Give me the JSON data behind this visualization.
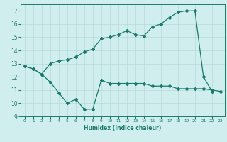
{
  "xlabel": "Humidex (Indice chaleur)",
  "line1": {
    "x": [
      0,
      1,
      2,
      3,
      4,
      5,
      6,
      7,
      8,
      9,
      10,
      11,
      12,
      13,
      14,
      15,
      16,
      17,
      18,
      19,
      20,
      21,
      22,
      23
    ],
    "y": [
      12.8,
      12.6,
      12.2,
      13.0,
      13.2,
      13.3,
      13.5,
      13.9,
      14.1,
      14.9,
      15.0,
      15.2,
      15.5,
      15.2,
      15.1,
      15.8,
      16.0,
      16.5,
      16.9,
      17.0,
      17.0,
      12.0,
      10.9,
      null
    ]
  },
  "line2": {
    "x": [
      0,
      1,
      2,
      3,
      4,
      5,
      6,
      7,
      8,
      9,
      10,
      11,
      12,
      13,
      14,
      15,
      16,
      17,
      18,
      19,
      20,
      21,
      22,
      23
    ],
    "y": [
      12.8,
      12.6,
      12.2,
      11.6,
      10.8,
      10.0,
      10.3,
      9.55,
      9.55,
      11.75,
      11.5,
      11.5,
      11.5,
      11.5,
      11.5,
      11.3,
      11.3,
      11.3,
      11.1,
      11.1,
      11.1,
      11.1,
      11.0,
      10.9
    ]
  },
  "color": "#1a7a6e",
  "bg_color": "#d0eeee",
  "grid_color": "#b8d8d8",
  "ylim": [
    9,
    17.5
  ],
  "xlim": [
    -0.5,
    23.5
  ],
  "yticks": [
    9,
    10,
    11,
    12,
    13,
    14,
    15,
    16,
    17
  ],
  "xticks": [
    0,
    1,
    2,
    3,
    4,
    5,
    6,
    7,
    8,
    9,
    10,
    11,
    12,
    13,
    14,
    15,
    16,
    17,
    18,
    19,
    20,
    21,
    22,
    23
  ],
  "marker": "D",
  "markersize": 2.0,
  "linewidth": 0.9
}
